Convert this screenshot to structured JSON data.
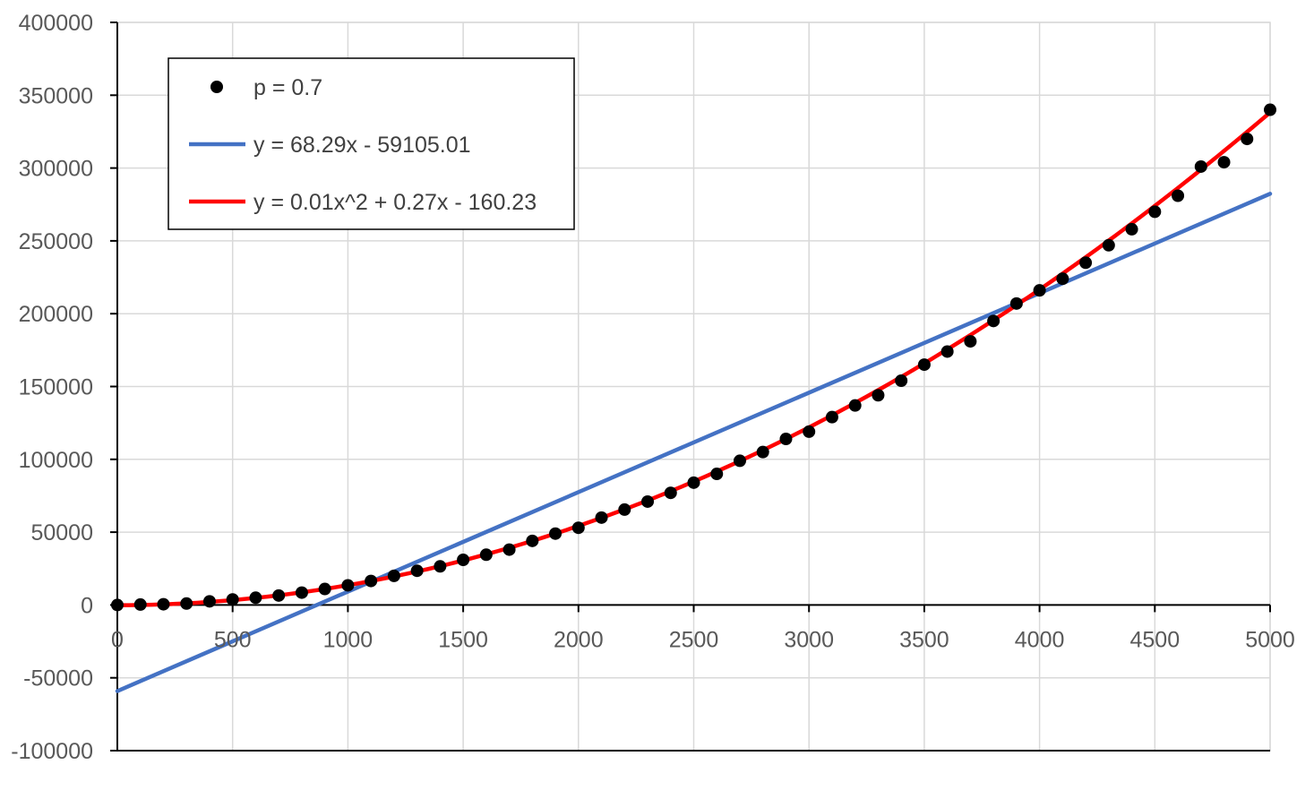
{
  "chart_data": {
    "type": "scatter",
    "title": "",
    "xlabel": "",
    "ylabel": "",
    "xlim": [
      0,
      5000
    ],
    "ylim": [
      -100000,
      400000
    ],
    "x_ticks": [
      "0",
      "500",
      "1000",
      "1500",
      "2000",
      "2500",
      "3000",
      "3500",
      "4000",
      "4500",
      "5000"
    ],
    "y_ticks": [
      "-100000",
      "-50000",
      "0",
      "50000",
      "100000",
      "150000",
      "200000",
      "250000",
      "300000",
      "350000",
      "400000"
    ],
    "grid": true,
    "legend_position": "top-left",
    "series": [
      {
        "name": "p = 0.7",
        "kind": "markers",
        "color": "#000000",
        "x": [
          0,
          100,
          200,
          300,
          400,
          500,
          600,
          700,
          800,
          900,
          1000,
          1100,
          1200,
          1300,
          1400,
          1500,
          1600,
          1700,
          1800,
          1900,
          2000,
          2100,
          2200,
          2300,
          2400,
          2500,
          2600,
          2700,
          2800,
          2900,
          3000,
          3100,
          3200,
          3300,
          3400,
          3500,
          3600,
          3700,
          3800,
          3900,
          4000,
          4100,
          4200,
          4300,
          4400,
          4500,
          4600,
          4700,
          4800,
          4900,
          5000
        ],
        "y": [
          0,
          300,
          500,
          1000,
          2500,
          3800,
          5000,
          6500,
          8500,
          11000,
          13500,
          16500,
          20000,
          23500,
          26500,
          31000,
          34500,
          38000,
          44000,
          49000,
          53000,
          60000,
          65500,
          71000,
          77000,
          84000,
          90000,
          99000,
          105000,
          114000,
          119000,
          129000,
          137000,
          144000,
          154000,
          165000,
          174000,
          181000,
          195000,
          207000,
          216000,
          224000,
          235000,
          247000,
          258000,
          270000,
          281000,
          301000,
          304000,
          320000,
          340000
        ]
      },
      {
        "name": "y = 68.29x - 59105.01",
        "kind": "line",
        "color": "#4472C4",
        "slope": 68.29,
        "intercept": -59105.01
      },
      {
        "name": "y = 0.01x^2 + 0.27x - 160.23",
        "kind": "curve",
        "color": "#FF0000",
        "a": 0.01348,
        "b": 0.27,
        "c": -160.23
      }
    ]
  }
}
